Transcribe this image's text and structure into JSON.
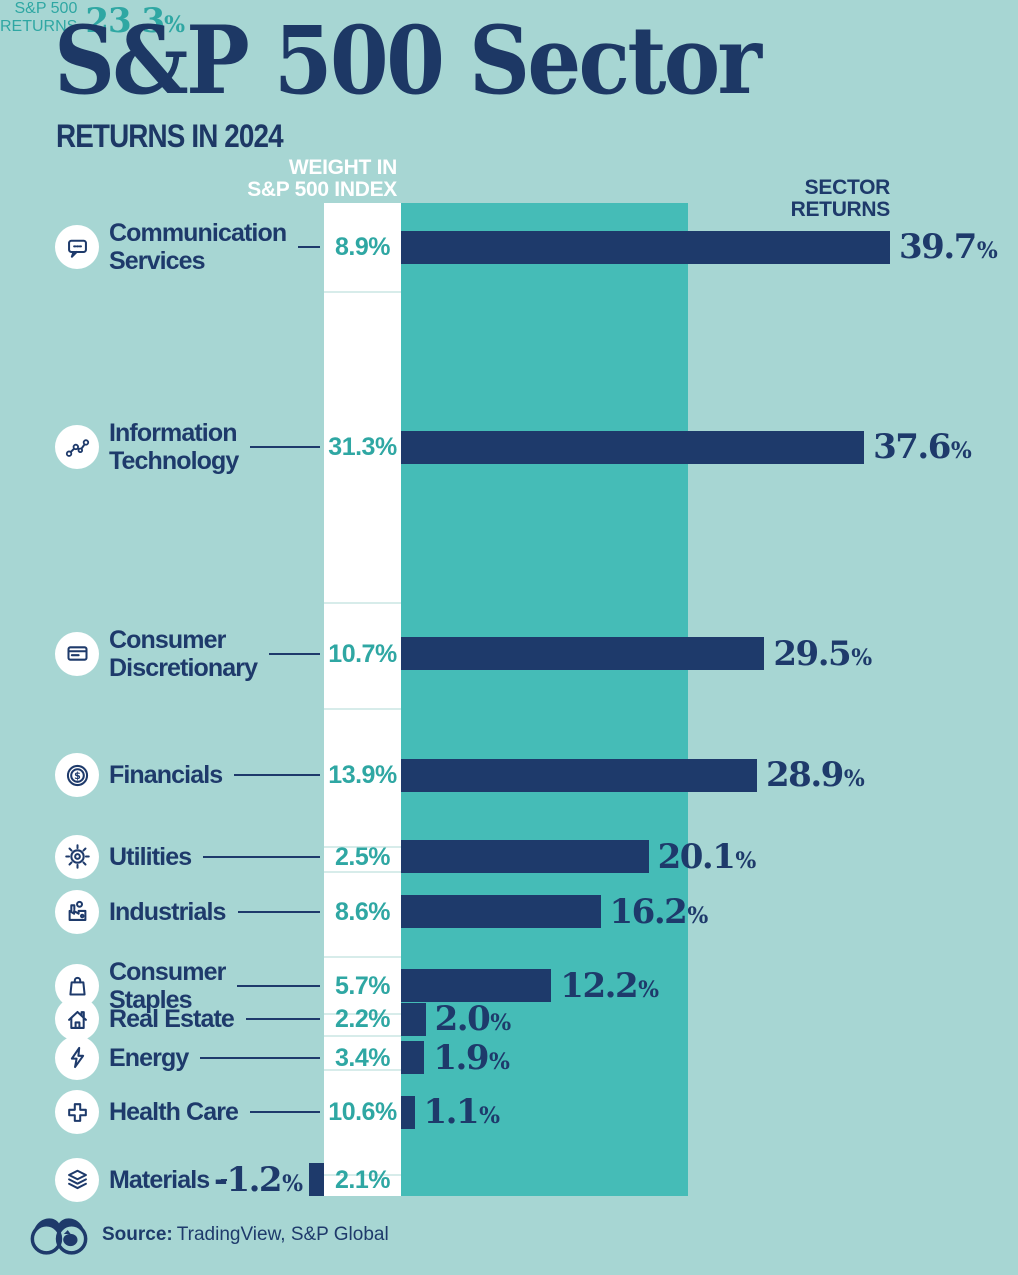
{
  "title": "S&P 500 Sector",
  "subtitle": "RETURNS IN 2024",
  "headers": {
    "weight_line1": "WEIGHT IN",
    "weight_line2": "S&P 500 INDEX",
    "benchmark_line1": "S&P 500",
    "benchmark_line2": "RETURNS",
    "benchmark_value": "23.3%",
    "sector_line1": "SECTOR",
    "sector_line2": "RETURNS"
  },
  "footer": {
    "source_label": "Source:",
    "source_text": "TradingView, S&P Global"
  },
  "colors": {
    "background": "#a7d6d3",
    "benchmark_band": "#45bcb7",
    "navy": "#1e3a6b",
    "teal_text": "#2fa7a3",
    "weight_column": "#ffffff",
    "divider": "#d7ecea"
  },
  "chart_data": {
    "type": "bar",
    "orientation": "horizontal",
    "title": "S&P 500 Sector Returns in 2024",
    "x_unit": "percent return",
    "benchmark": {
      "label": "S&P 500 Returns",
      "value_pct": 23.3
    },
    "layout_note": "White column segment heights are proportional to sector weight; teal band width equals the 23.3% S&P 500 return on the bar scale",
    "sectors": [
      {
        "name": "Communication Services",
        "label_lines": [
          "Communication",
          "Services"
        ],
        "icon": "speech-bubble-icon",
        "weight_pct": 8.9,
        "return_pct": 39.7
      },
      {
        "name": "Information Technology",
        "label_lines": [
          "Information",
          "Technology"
        ],
        "icon": "network-nodes-icon",
        "weight_pct": 31.3,
        "return_pct": 37.6
      },
      {
        "name": "Consumer Discretionary",
        "label_lines": [
          "Consumer",
          "Discretionary"
        ],
        "icon": "credit-card-icon",
        "weight_pct": 10.7,
        "return_pct": 29.5
      },
      {
        "name": "Financials",
        "label_lines": [
          "Financials"
        ],
        "icon": "dollar-coin-icon",
        "weight_pct": 13.9,
        "return_pct": 28.9
      },
      {
        "name": "Utilities",
        "label_lines": [
          "Utilities"
        ],
        "icon": "gear-icon",
        "weight_pct": 2.5,
        "return_pct": 20.1
      },
      {
        "name": "Industrials",
        "label_lines": [
          "Industrials"
        ],
        "icon": "factory-icon",
        "weight_pct": 8.6,
        "return_pct": 16.2
      },
      {
        "name": "Consumer Staples",
        "label_lines": [
          "Consumer",
          "Staples"
        ],
        "icon": "shopping-bag-icon",
        "weight_pct": 5.7,
        "return_pct": 12.2
      },
      {
        "name": "Real Estate",
        "label_lines": [
          "Real Estate"
        ],
        "icon": "house-icon",
        "weight_pct": 2.2,
        "return_pct": 2.0
      },
      {
        "name": "Energy",
        "label_lines": [
          "Energy"
        ],
        "icon": "lightning-bolt-icon",
        "weight_pct": 3.4,
        "return_pct": 1.9
      },
      {
        "name": "Health Care",
        "label_lines": [
          "Health Care"
        ],
        "icon": "medical-cross-icon",
        "weight_pct": 10.6,
        "return_pct": 1.1
      },
      {
        "name": "Materials",
        "label_lines": [
          "Materials"
        ],
        "icon": "layers-icon",
        "weight_pct": 2.1,
        "return_pct": -1.2
      }
    ]
  }
}
